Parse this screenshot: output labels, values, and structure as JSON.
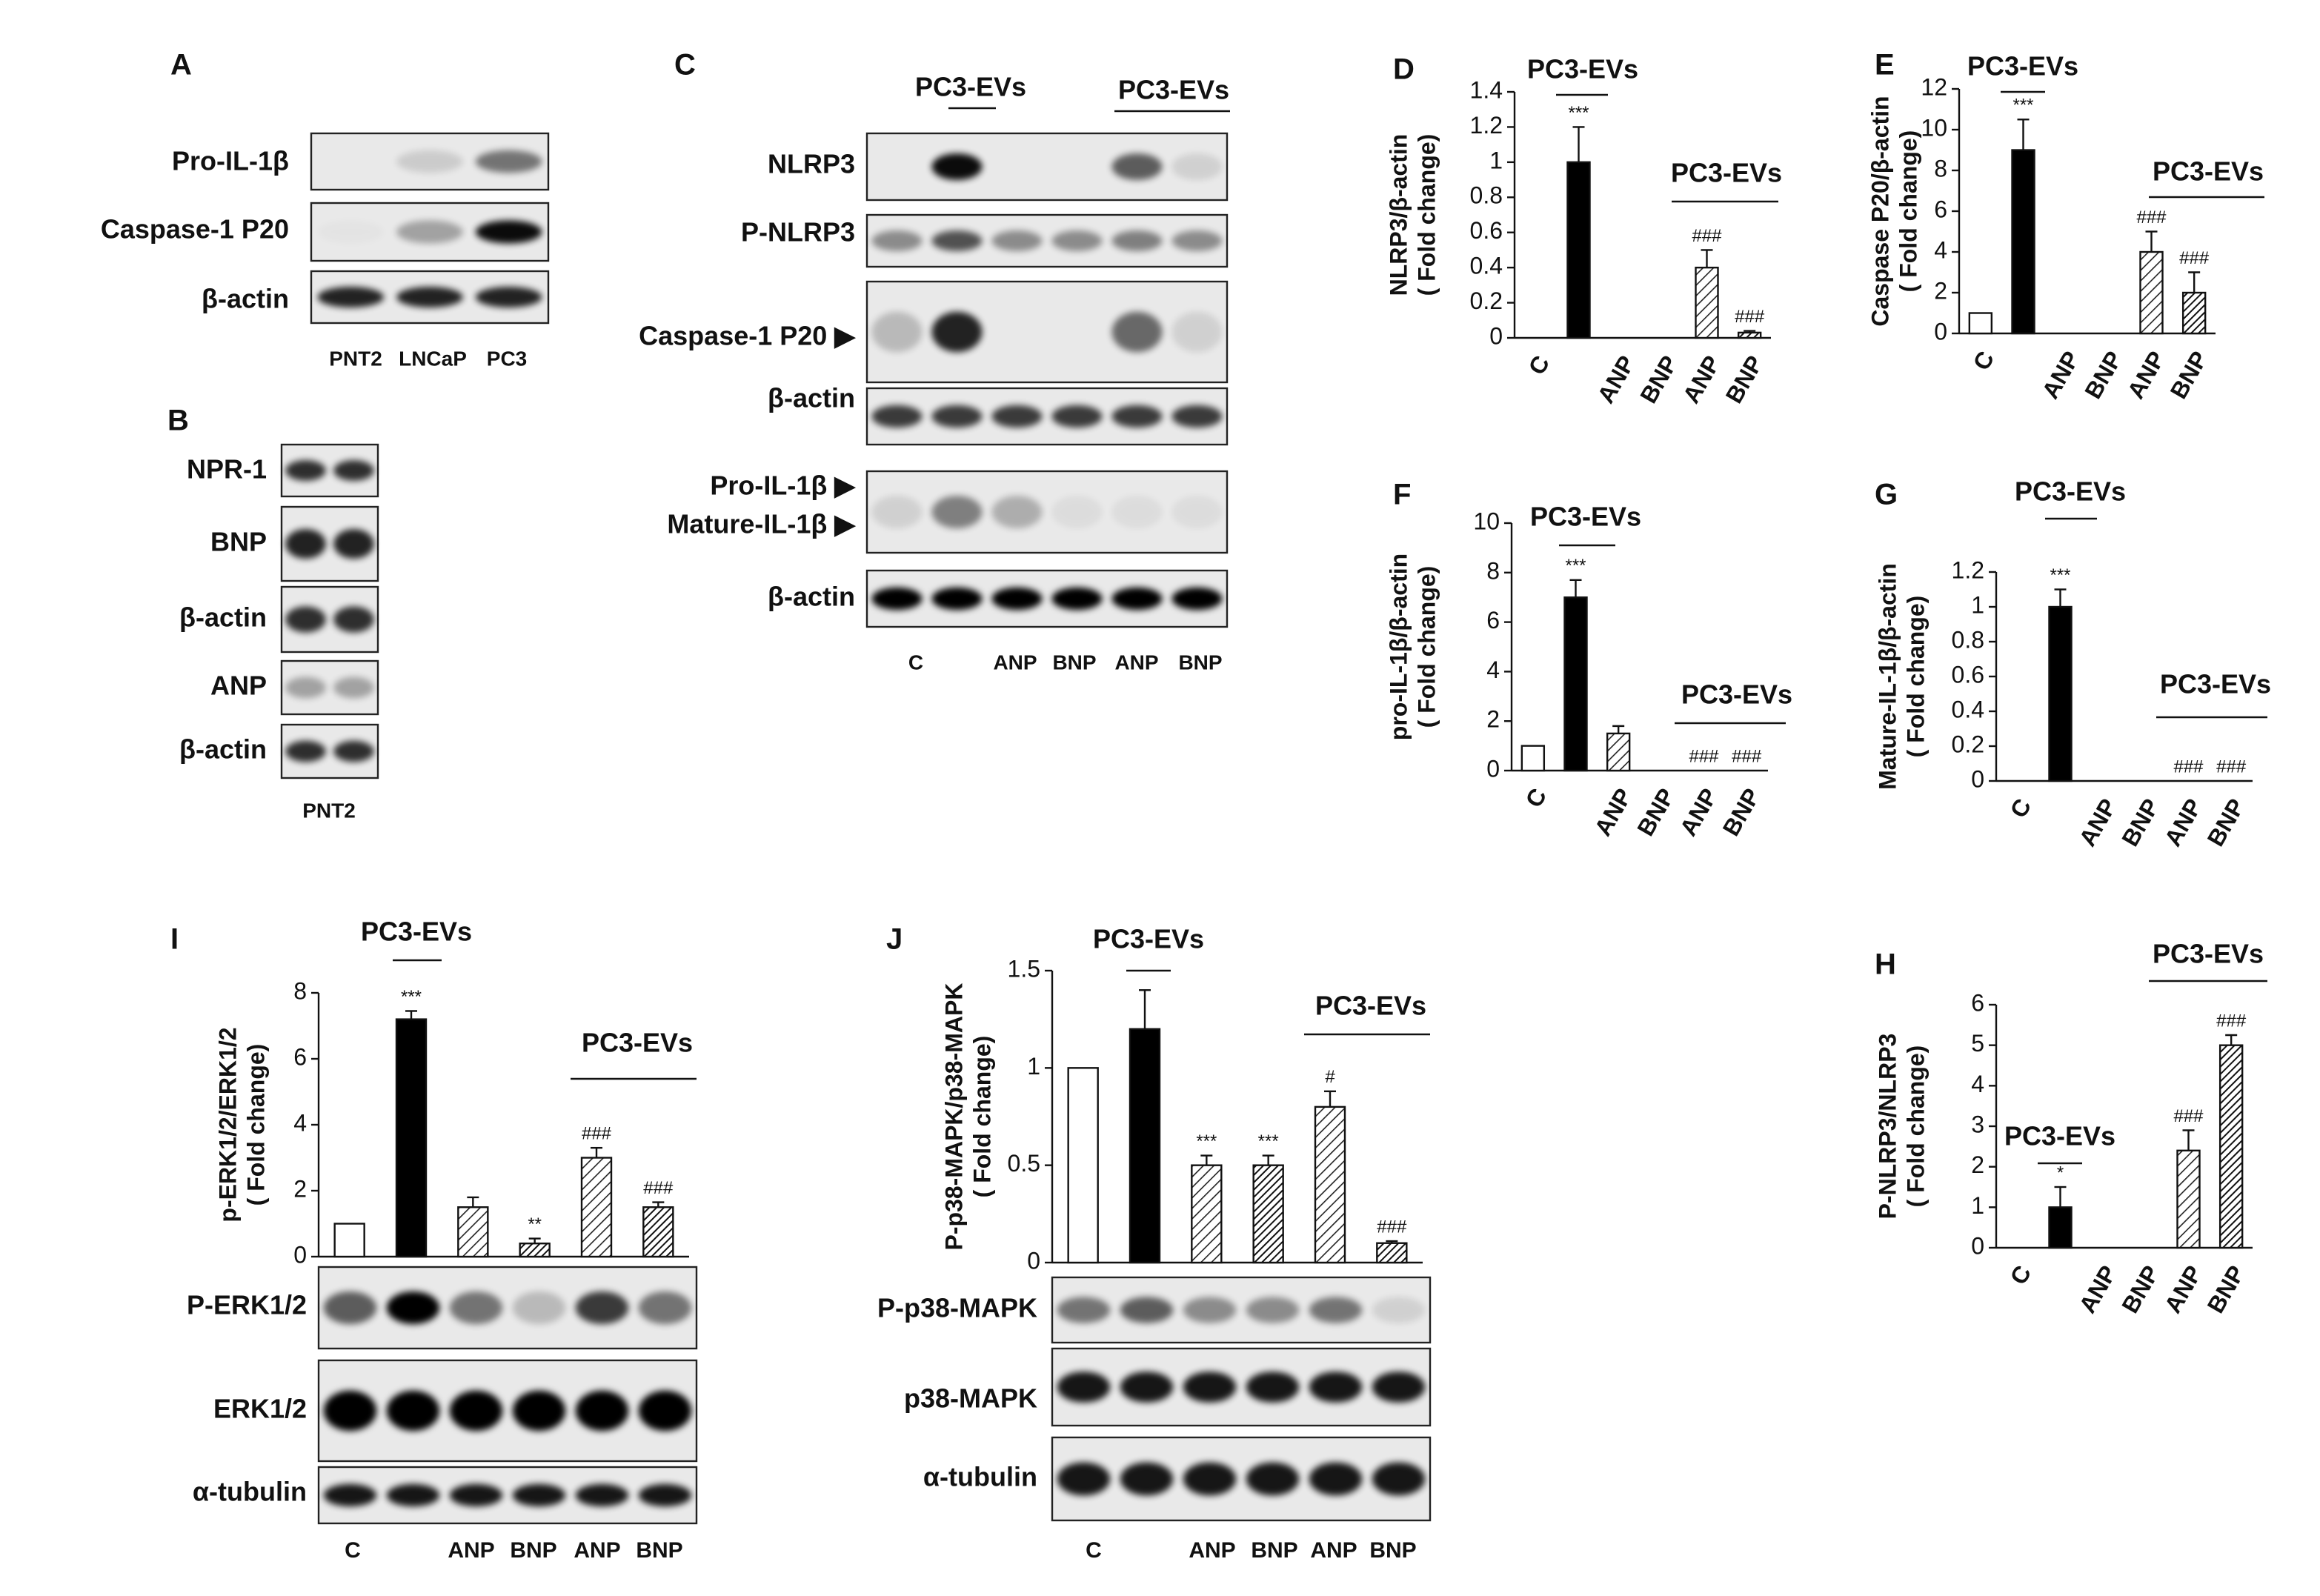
{
  "chart_data": [
    {
      "type": "bar",
      "panel": "D",
      "ylabel": [
        "NLRP3/β-actin",
        "( Fold change)"
      ],
      "categories": [
        "C",
        null,
        "ANP",
        "BNP",
        "ANP",
        "BNP"
      ],
      "values": [
        0,
        1.0,
        0,
        0,
        0.4,
        0.03
      ],
      "errors": [
        null,
        0.2,
        null,
        null,
        0.1,
        0.01
      ],
      "annotations": [
        null,
        "***",
        null,
        null,
        "###",
        "###"
      ],
      "fills": [
        "white",
        "black",
        "hatch",
        "hatch-dense",
        "hatch",
        "hatch-dense"
      ],
      "group_labels": [
        "PC3-EVs",
        "PC3-EVs"
      ],
      "ylim": [
        0,
        1.4
      ],
      "yticks": [
        0,
        0.2,
        0.4,
        0.6,
        0.8,
        1,
        1.2,
        1.4
      ]
    },
    {
      "type": "bar",
      "panel": "E",
      "ylabel": [
        "Caspase P20/β-actin",
        "( Fold change)"
      ],
      "categories": [
        "C",
        null,
        "ANP",
        "BNP",
        "ANP",
        "BNP"
      ],
      "values": [
        1,
        9,
        0,
        0,
        4,
        2
      ],
      "errors": [
        null,
        1.5,
        null,
        null,
        1,
        1
      ],
      "annotations": [
        null,
        "***",
        null,
        null,
        "###",
        "###"
      ],
      "fills": [
        "white",
        "black",
        "hatch",
        "hatch-dense",
        "hatch",
        "hatch-dense"
      ],
      "group_labels": [
        "PC3-EVs",
        "PC3-EVs"
      ],
      "ylim": [
        0,
        12
      ],
      "yticks": [
        0,
        2,
        4,
        6,
        8,
        10,
        12
      ]
    },
    {
      "type": "bar",
      "panel": "F",
      "ylabel": [
        "pro-IL-1β/β-actin",
        "( Fold change)"
      ],
      "categories": [
        "C",
        null,
        "ANP",
        "BNP",
        "ANP",
        "BNP"
      ],
      "values": [
        1,
        7,
        1.5,
        0,
        0,
        0
      ],
      "errors": [
        null,
        0.7,
        0.3,
        null,
        null,
        null
      ],
      "annotations": [
        null,
        "***",
        null,
        null,
        "###",
        "###"
      ],
      "fills": [
        "white",
        "black",
        "hatch",
        "hatch-dense",
        "hatch",
        "hatch-dense"
      ],
      "group_labels": [
        "PC3-EVs",
        "PC3-EVs"
      ],
      "ylim": [
        0,
        10
      ],
      "yticks": [
        0,
        2,
        4,
        6,
        8,
        10
      ]
    },
    {
      "type": "bar",
      "panel": "G",
      "ylabel": [
        "Mature-IL-1β/β-actin",
        "( Fold change)"
      ],
      "categories": [
        "C",
        null,
        "ANP",
        "BNP",
        "ANP",
        "BNP"
      ],
      "values": [
        0,
        1,
        0,
        0,
        0,
        0
      ],
      "errors": [
        null,
        0.1,
        null,
        null,
        null,
        null
      ],
      "annotations": [
        null,
        "***",
        null,
        null,
        "###",
        "###"
      ],
      "fills": [
        "white",
        "black",
        "hatch",
        "hatch-dense",
        "hatch",
        "hatch-dense"
      ],
      "group_labels": [
        "PC3-EVs",
        "PC3-EVs"
      ],
      "ylim": [
        0,
        1.2
      ],
      "yticks": [
        0,
        0.2,
        0.4,
        0.6,
        0.8,
        1,
        1.2
      ]
    },
    {
      "type": "bar",
      "panel": "H",
      "ylabel": [
        "P-NLRP3/NLRP3",
        "( Fold change)"
      ],
      "categories": [
        "C",
        null,
        "ANP",
        "BNP",
        "ANP",
        "BNP"
      ],
      "values": [
        0,
        1,
        0,
        0,
        2.4,
        5
      ],
      "errors": [
        null,
        0.5,
        null,
        null,
        0.5,
        0.25
      ],
      "annotations": [
        null,
        "*",
        null,
        null,
        "###",
        "###"
      ],
      "fills": [
        "white",
        "black",
        "hatch",
        "hatch-dense",
        "hatch",
        "hatch-dense"
      ],
      "group_labels": [
        "PC3-EVs",
        "PC3-EVs"
      ],
      "ylim": [
        0,
        6
      ],
      "yticks": [
        0,
        1,
        2,
        3,
        4,
        5,
        6
      ]
    },
    {
      "type": "bar",
      "panel": "I",
      "ylabel": [
        "p-ERK1/2/ERK1/2",
        "( Fold change)"
      ],
      "categories": [
        "C",
        null,
        "ANP",
        "BNP",
        "ANP",
        "BNP"
      ],
      "values": [
        1,
        7.2,
        1.5,
        0.4,
        3,
        1.5
      ],
      "errors": [
        null,
        0.25,
        0.3,
        0.15,
        0.3,
        0.15
      ],
      "annotations": [
        null,
        "***",
        null,
        "**",
        "###",
        "###"
      ],
      "fills": [
        "white",
        "black",
        "hatch",
        "hatch-dense",
        "hatch",
        "hatch-dense"
      ],
      "group_labels": [
        "PC3-EVs",
        "PC3-EVs"
      ],
      "ylim": [
        0,
        8
      ],
      "yticks": [
        0,
        2,
        4,
        6,
        8
      ]
    },
    {
      "type": "bar",
      "panel": "J",
      "ylabel": [
        "P-p38-MAPK/p38-MAPK",
        "( Fold change)"
      ],
      "categories": [
        "C",
        null,
        "ANP",
        "BNP",
        "ANP",
        "BNP"
      ],
      "values": [
        1,
        1.2,
        0.5,
        0.5,
        0.8,
        0.1
      ],
      "errors": [
        null,
        0.2,
        0.05,
        0.05,
        0.08,
        0.01
      ],
      "annotations": [
        null,
        null,
        "***",
        "***",
        "#",
        "###"
      ],
      "fills": [
        "white",
        "black",
        "hatch",
        "hatch-dense",
        "hatch",
        "hatch-dense"
      ],
      "group_labels": [
        "PC3-EVs",
        "PC3-EVs"
      ],
      "ylim": [
        0,
        1.5
      ],
      "yticks": [
        0,
        0.5,
        1,
        1.5
      ]
    }
  ],
  "blots": [
    {
      "panel": "A",
      "rows": [
        "Pro-IL-1β",
        "Caspase-1 P20",
        "β-actin"
      ],
      "lanes": [
        "PNT2",
        "LNCaP",
        "PC3"
      ]
    },
    {
      "panel": "B",
      "rows": [
        "NPR-1",
        "BNP",
        "β-actin",
        "ANP",
        "β-actin"
      ],
      "lanes": [
        "PNT2"
      ]
    },
    {
      "panel": "C",
      "rows": [
        "NLRP3",
        "P-NLRP3",
        "Caspase-1 P20 ▶",
        "β-actin",
        "Pro-IL-1β ▶",
        "Mature-IL-1β ▶",
        "β-actin"
      ],
      "lanes": [
        "C",
        "ANP",
        "BNP",
        "ANP",
        "BNP"
      ],
      "group_labels": [
        "PC3-EVs",
        "PC3-EVs"
      ]
    },
    {
      "rows": [
        "P-ERK1/2",
        "ERK1/2",
        "α-tubulin"
      ]
    },
    {
      "rows": [
        "P-p38-MAPK",
        "p38-MAPK",
        "α-tubulin"
      ]
    }
  ]
}
